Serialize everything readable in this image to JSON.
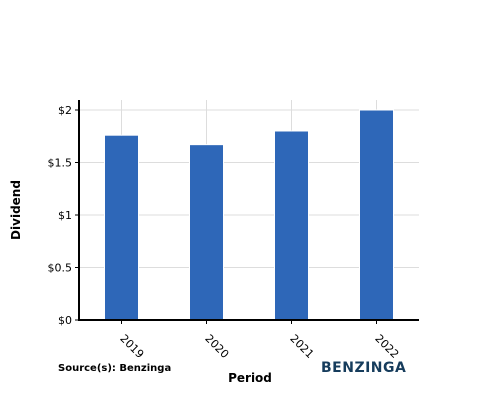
{
  "chart_data": {
    "type": "bar",
    "categories": [
      "2019",
      "2020",
      "2021",
      "2022"
    ],
    "values": [
      1.76,
      1.67,
      1.8,
      2.0
    ],
    "ylim": [
      0,
      2
    ],
    "yticks": [
      0,
      0.5,
      1,
      1.5,
      2
    ],
    "ytick_labels": [
      "$0",
      "$0.5",
      "$1",
      "$1.5",
      "$2"
    ],
    "xlabel": "Period",
    "ylabel": "Dividend",
    "grid": true,
    "bar_color": "#2e67b8",
    "grid_color": "#dddddd"
  },
  "footer": {
    "source": "Source(s): Benzinga",
    "brand": "BENZINGA",
    "brand_color": "#163c5c"
  }
}
